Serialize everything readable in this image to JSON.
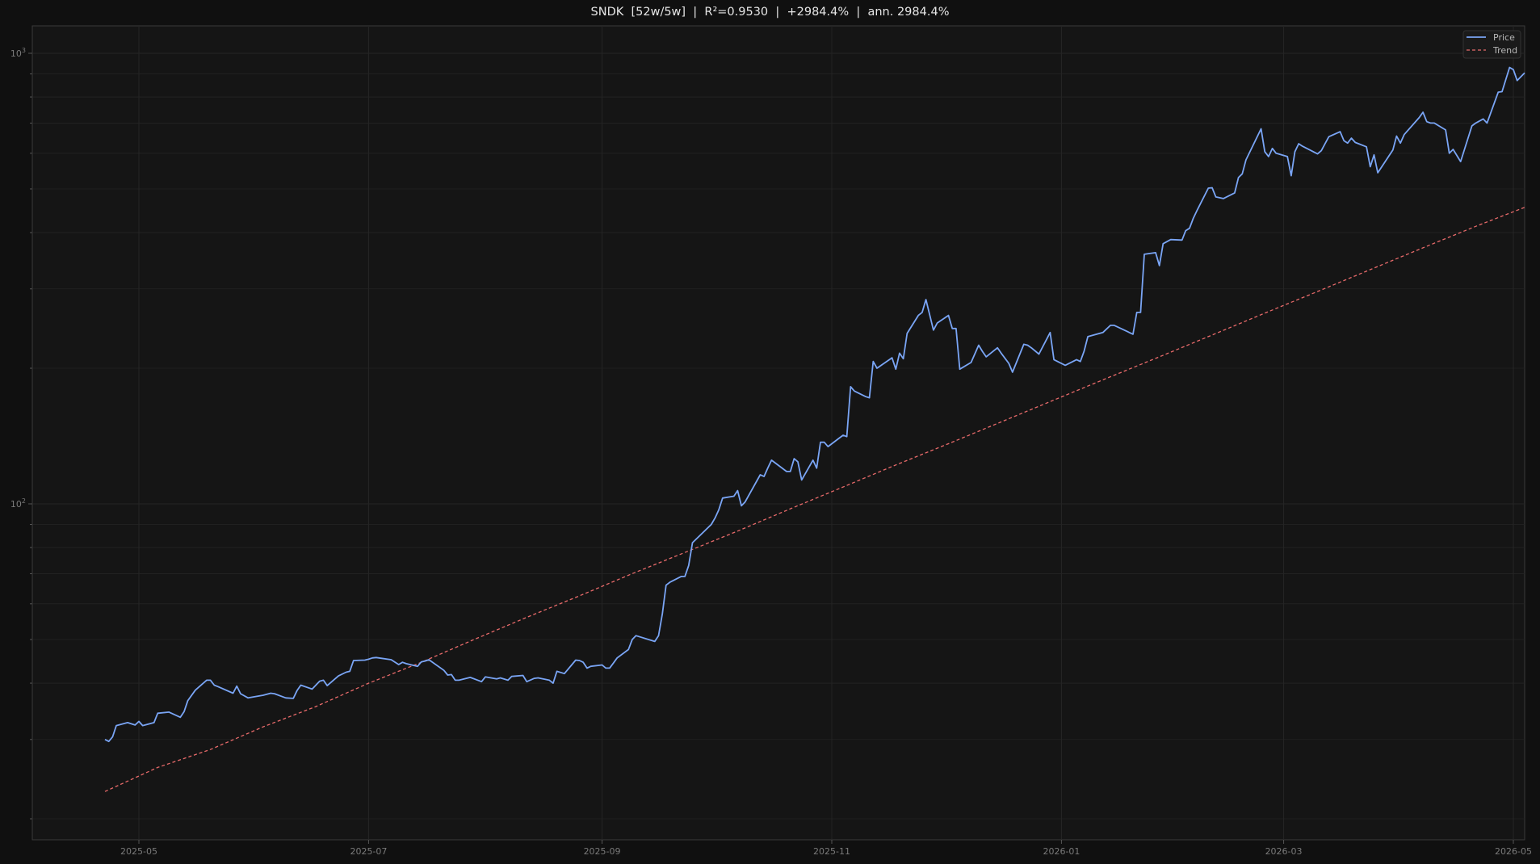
{
  "title": "SNDK  [52w/5w]  |  R²=0.9530  |  +2984.4%  |  ann. 2984.4%",
  "legend": {
    "price": "Price",
    "trend": "Trend"
  },
  "colors": {
    "price": "#7aa5f5",
    "trend": "#e86a6a",
    "background": "#101010",
    "plot_bg": "#151515",
    "grid": "#252525",
    "axis": "#3a3a3a"
  },
  "chart_data": {
    "type": "line",
    "title": "SNDK  [52w/5w]  |  R²=0.9530  |  +2984.4%  |  ann. 2984.4%",
    "xlabel": "",
    "ylabel": "",
    "yscale": "log",
    "ylim": [
      18.8,
      1050
    ],
    "xlim": [
      "2025-03-24",
      "2026-05-04"
    ],
    "grid": true,
    "legend_position": "upper right",
    "x_ticks": [
      "2025-05",
      "2025-07",
      "2025-09",
      "2025-11",
      "2026-01",
      "2026-03",
      "2026-05"
    ],
    "y_ticks": [
      "10^2",
      "10^3"
    ],
    "series": [
      {
        "name": "Price",
        "style": "solid",
        "points": [
          [
            "2025-04-22",
            30.0
          ],
          [
            "2025-04-23",
            29.7
          ],
          [
            "2025-04-24",
            30.4
          ],
          [
            "2025-04-25",
            32.2
          ],
          [
            "2025-04-28",
            32.7
          ],
          [
            "2025-04-29",
            32.5
          ],
          [
            "2025-04-30",
            32.3
          ],
          [
            "2025-05-01",
            32.9
          ],
          [
            "2025-05-02",
            32.2
          ],
          [
            "2025-05-05",
            32.7
          ],
          [
            "2025-05-06",
            34.3
          ],
          [
            "2025-05-09",
            34.5
          ],
          [
            "2025-05-12",
            33.6
          ],
          [
            "2025-05-13",
            34.6
          ],
          [
            "2025-05-14",
            36.6
          ],
          [
            "2025-05-16",
            38.6
          ],
          [
            "2025-05-19",
            40.6
          ],
          [
            "2025-05-20",
            40.6
          ],
          [
            "2025-05-21",
            39.6
          ],
          [
            "2025-05-22",
            39.3
          ],
          [
            "2025-05-26",
            38.0
          ],
          [
            "2025-05-27",
            39.4
          ],
          [
            "2025-05-28",
            37.9
          ],
          [
            "2025-05-30",
            37.1
          ],
          [
            "2025-06-03",
            37.6
          ],
          [
            "2025-06-05",
            38.0
          ],
          [
            "2025-06-06",
            37.9
          ],
          [
            "2025-06-09",
            37.1
          ],
          [
            "2025-06-11",
            37.0
          ],
          [
            "2025-06-12",
            38.5
          ],
          [
            "2025-06-13",
            39.6
          ],
          [
            "2025-06-16",
            38.8
          ],
          [
            "2025-06-18",
            40.4
          ],
          [
            "2025-06-19",
            40.6
          ],
          [
            "2025-06-20",
            39.5
          ],
          [
            "2025-06-23",
            41.5
          ],
          [
            "2025-06-25",
            42.3
          ],
          [
            "2025-06-26",
            42.5
          ],
          [
            "2025-06-27",
            44.9
          ],
          [
            "2025-06-30",
            45.0
          ],
          [
            "2025-07-01",
            45.2
          ],
          [
            "2025-07-02",
            45.5
          ],
          [
            "2025-07-03",
            45.6
          ],
          [
            "2025-07-07",
            45.1
          ],
          [
            "2025-07-09",
            44.0
          ],
          [
            "2025-07-10",
            44.5
          ],
          [
            "2025-07-11",
            44.2
          ],
          [
            "2025-07-14",
            43.6
          ],
          [
            "2025-07-15",
            44.6
          ],
          [
            "2025-07-16",
            44.8
          ],
          [
            "2025-07-17",
            45.1
          ],
          [
            "2025-07-21",
            42.7
          ],
          [
            "2025-07-22",
            41.7
          ],
          [
            "2025-07-23",
            41.8
          ],
          [
            "2025-07-24",
            40.6
          ],
          [
            "2025-07-25",
            40.6
          ],
          [
            "2025-07-28",
            41.2
          ],
          [
            "2025-07-31",
            40.3
          ],
          [
            "2025-08-01",
            41.3
          ],
          [
            "2025-08-04",
            40.9
          ],
          [
            "2025-08-05",
            41.1
          ],
          [
            "2025-08-07",
            40.6
          ],
          [
            "2025-08-08",
            41.4
          ],
          [
            "2025-08-11",
            41.6
          ],
          [
            "2025-08-12",
            40.3
          ],
          [
            "2025-08-14",
            41.0
          ],
          [
            "2025-08-15",
            41.1
          ],
          [
            "2025-08-18",
            40.6
          ],
          [
            "2025-08-19",
            40.0
          ],
          [
            "2025-08-20",
            42.5
          ],
          [
            "2025-08-22",
            42.0
          ],
          [
            "2025-08-25",
            45.0
          ],
          [
            "2025-08-26",
            44.9
          ],
          [
            "2025-08-27",
            44.5
          ],
          [
            "2025-08-28",
            43.2
          ],
          [
            "2025-08-29",
            43.6
          ],
          [
            "2025-09-01",
            43.9
          ],
          [
            "2025-09-02",
            43.2
          ],
          [
            "2025-09-03",
            43.2
          ],
          [
            "2025-09-04",
            44.3
          ],
          [
            "2025-09-05",
            45.5
          ],
          [
            "2025-09-08",
            47.5
          ],
          [
            "2025-09-09",
            50.0
          ],
          [
            "2025-09-10",
            51.0
          ],
          [
            "2025-09-15",
            49.5
          ],
          [
            "2025-09-16",
            51.0
          ],
          [
            "2025-09-17",
            57.0
          ],
          [
            "2025-09-18",
            66.0
          ],
          [
            "2025-09-19",
            67.0
          ],
          [
            "2025-09-22",
            69.0
          ],
          [
            "2025-09-23",
            69.0
          ],
          [
            "2025-09-24",
            73.0
          ],
          [
            "2025-09-25",
            82.0
          ],
          [
            "2025-09-30",
            90.0
          ],
          [
            "2025-10-01",
            93.0
          ],
          [
            "2025-10-02",
            97.0
          ],
          [
            "2025-10-03",
            103.0
          ],
          [
            "2025-10-06",
            104.0
          ],
          [
            "2025-10-07",
            107.0
          ],
          [
            "2025-10-08",
            99.0
          ],
          [
            "2025-10-09",
            101.0
          ],
          [
            "2025-10-13",
            116.0
          ],
          [
            "2025-10-14",
            115.0
          ],
          [
            "2025-10-15",
            120.0
          ],
          [
            "2025-10-16",
            125.0
          ],
          [
            "2025-10-20",
            118.0
          ],
          [
            "2025-10-21",
            118.0
          ],
          [
            "2025-10-22",
            126.0
          ],
          [
            "2025-10-23",
            124.0
          ],
          [
            "2025-10-24",
            113.0
          ],
          [
            "2025-10-27",
            125.0
          ],
          [
            "2025-10-28",
            120.0
          ],
          [
            "2025-10-29",
            137.0
          ],
          [
            "2025-10-30",
            137.0
          ],
          [
            "2025-10-31",
            134.0
          ],
          [
            "2025-11-03",
            140.0
          ],
          [
            "2025-11-04",
            142.0
          ],
          [
            "2025-11-05",
            141.0
          ],
          [
            "2025-11-06",
            182.0
          ],
          [
            "2025-11-07",
            178.0
          ],
          [
            "2025-11-10",
            173.0
          ],
          [
            "2025-11-11",
            172.0
          ],
          [
            "2025-11-12",
            207.0
          ],
          [
            "2025-11-13",
            200.0
          ],
          [
            "2025-11-17",
            211.0
          ],
          [
            "2025-11-18",
            199.0
          ],
          [
            "2025-11-19",
            216.0
          ],
          [
            "2025-11-20",
            210.0
          ],
          [
            "2025-11-21",
            239.0
          ],
          [
            "2025-11-24",
            262.0
          ],
          [
            "2025-11-25",
            266.0
          ],
          [
            "2025-11-26",
            284.0
          ],
          [
            "2025-11-28",
            243.0
          ],
          [
            "2025-11-29",
            252.0
          ],
          [
            "2025-12-02",
            262.0
          ],
          [
            "2025-12-03",
            245.0
          ],
          [
            "2025-12-04",
            245.0
          ],
          [
            "2025-12-05",
            199.0
          ],
          [
            "2025-12-08",
            206.0
          ],
          [
            "2025-12-10",
            225.0
          ],
          [
            "2025-12-11",
            218.0
          ],
          [
            "2025-12-12",
            212.0
          ],
          [
            "2025-12-15",
            222.0
          ],
          [
            "2025-12-16",
            216.0
          ],
          [
            "2025-12-18",
            205.0
          ],
          [
            "2025-12-19",
            196.0
          ],
          [
            "2025-12-22",
            226.0
          ],
          [
            "2025-12-23",
            225.0
          ],
          [
            "2025-12-24",
            222.0
          ],
          [
            "2025-12-26",
            215.0
          ],
          [
            "2025-12-29",
            240.0
          ],
          [
            "2025-12-30",
            209.0
          ],
          [
            "2026-01-02",
            203.0
          ],
          [
            "2026-01-05",
            209.0
          ],
          [
            "2026-01-06",
            207.0
          ],
          [
            "2026-01-07",
            218.0
          ],
          [
            "2026-01-08",
            235.0
          ],
          [
            "2026-01-12",
            240.0
          ],
          [
            "2026-01-14",
            249.0
          ],
          [
            "2026-01-15",
            249.0
          ],
          [
            "2026-01-20",
            238.0
          ],
          [
            "2026-01-21",
            266.0
          ],
          [
            "2026-01-22",
            266.0
          ],
          [
            "2026-01-23",
            358.0
          ],
          [
            "2026-01-26",
            361.0
          ],
          [
            "2026-01-27",
            338.0
          ],
          [
            "2026-01-28",
            378.0
          ],
          [
            "2026-01-30",
            386.0
          ],
          [
            "2026-02-02",
            385.0
          ],
          [
            "2026-02-03",
            404.0
          ],
          [
            "2026-02-04",
            409.0
          ],
          [
            "2026-02-05",
            430.0
          ],
          [
            "2026-02-06",
            448.0
          ],
          [
            "2026-02-09",
            502.0
          ],
          [
            "2026-02-10",
            503.0
          ],
          [
            "2026-02-11",
            480.0
          ],
          [
            "2026-02-12",
            478.0
          ],
          [
            "2026-02-13",
            476.0
          ],
          [
            "2026-02-16",
            490.0
          ],
          [
            "2026-02-17",
            530.0
          ],
          [
            "2026-02-18",
            540.0
          ],
          [
            "2026-02-19",
            580.0
          ],
          [
            "2026-02-23",
            680.0
          ],
          [
            "2026-02-24",
            605.0
          ],
          [
            "2026-02-25",
            590.0
          ],
          [
            "2026-02-26",
            615.0
          ],
          [
            "2026-02-27",
            600.0
          ],
          [
            "2026-03-02",
            590.0
          ],
          [
            "2026-03-03",
            535.0
          ],
          [
            "2026-03-04",
            605.0
          ],
          [
            "2026-03-05",
            630.0
          ],
          [
            "2026-03-06",
            622.0
          ],
          [
            "2026-03-10",
            598.0
          ],
          [
            "2026-03-11",
            608.0
          ],
          [
            "2026-03-12",
            630.0
          ],
          [
            "2026-03-13",
            653.0
          ],
          [
            "2026-03-16",
            670.0
          ],
          [
            "2026-03-17",
            640.0
          ],
          [
            "2026-03-18",
            632.0
          ],
          [
            "2026-03-19",
            648.0
          ],
          [
            "2026-03-20",
            634.0
          ],
          [
            "2026-03-23",
            620.0
          ],
          [
            "2026-03-24",
            560.0
          ],
          [
            "2026-03-25",
            595.0
          ],
          [
            "2026-03-26",
            543.0
          ],
          [
            "2026-03-30",
            610.0
          ],
          [
            "2026-03-31",
            655.0
          ],
          [
            "2026-04-01",
            632.0
          ],
          [
            "2026-04-02",
            660.0
          ],
          [
            "2026-04-06",
            720.0
          ],
          [
            "2026-04-07",
            740.0
          ],
          [
            "2026-04-08",
            705.0
          ],
          [
            "2026-04-09",
            700.0
          ],
          [
            "2026-04-10",
            700.0
          ],
          [
            "2026-04-13",
            676.0
          ],
          [
            "2026-04-14",
            600.0
          ],
          [
            "2026-04-15",
            612.0
          ],
          [
            "2026-04-17",
            575.0
          ],
          [
            "2026-04-20",
            690.0
          ],
          [
            "2026-04-21",
            700.0
          ],
          [
            "2026-04-23",
            715.0
          ],
          [
            "2026-04-24",
            700.0
          ],
          [
            "2026-04-27",
            820.0
          ],
          [
            "2026-04-28",
            822.0
          ],
          [
            "2026-04-30",
            930.0
          ],
          [
            "2026-05-01",
            920.0
          ],
          [
            "2026-05-02",
            870.0
          ],
          [
            "2026-05-04",
            905.0
          ]
        ]
      },
      {
        "name": "Trend",
        "style": "dashed",
        "points": [
          [
            "2025-04-22",
            23.0
          ],
          [
            "2025-05-06",
            26.0
          ],
          [
            "2025-05-20",
            28.5
          ],
          [
            "2025-06-03",
            32.0
          ],
          [
            "2025-06-17",
            35.5
          ],
          [
            "2025-07-01",
            40.0
          ],
          [
            "2025-07-15",
            44.5
          ],
          [
            "2025-07-29",
            50.0
          ],
          [
            "2025-08-12",
            56.0
          ],
          [
            "2025-08-26",
            62.5
          ],
          [
            "2025-09-09",
            70.0
          ],
          [
            "2025-09-23",
            78.0
          ],
          [
            "2025-10-07",
            87.0
          ],
          [
            "2025-10-21",
            97.5
          ],
          [
            "2025-11-04",
            109.0
          ],
          [
            "2025-11-18",
            122.0
          ],
          [
            "2025-12-02",
            136.0
          ],
          [
            "2025-12-16",
            152.0
          ],
          [
            "2025-12-30",
            170.0
          ],
          [
            "2026-01-13",
            190.0
          ],
          [
            "2026-01-27",
            212.0
          ],
          [
            "2026-02-10",
            237.0
          ],
          [
            "2026-02-24",
            265.0
          ],
          [
            "2026-03-10",
            296.0
          ],
          [
            "2026-03-24",
            331.0
          ],
          [
            "2026-04-07",
            370.0
          ],
          [
            "2026-04-21",
            413.0
          ],
          [
            "2026-05-04",
            455.0
          ]
        ]
      }
    ]
  }
}
